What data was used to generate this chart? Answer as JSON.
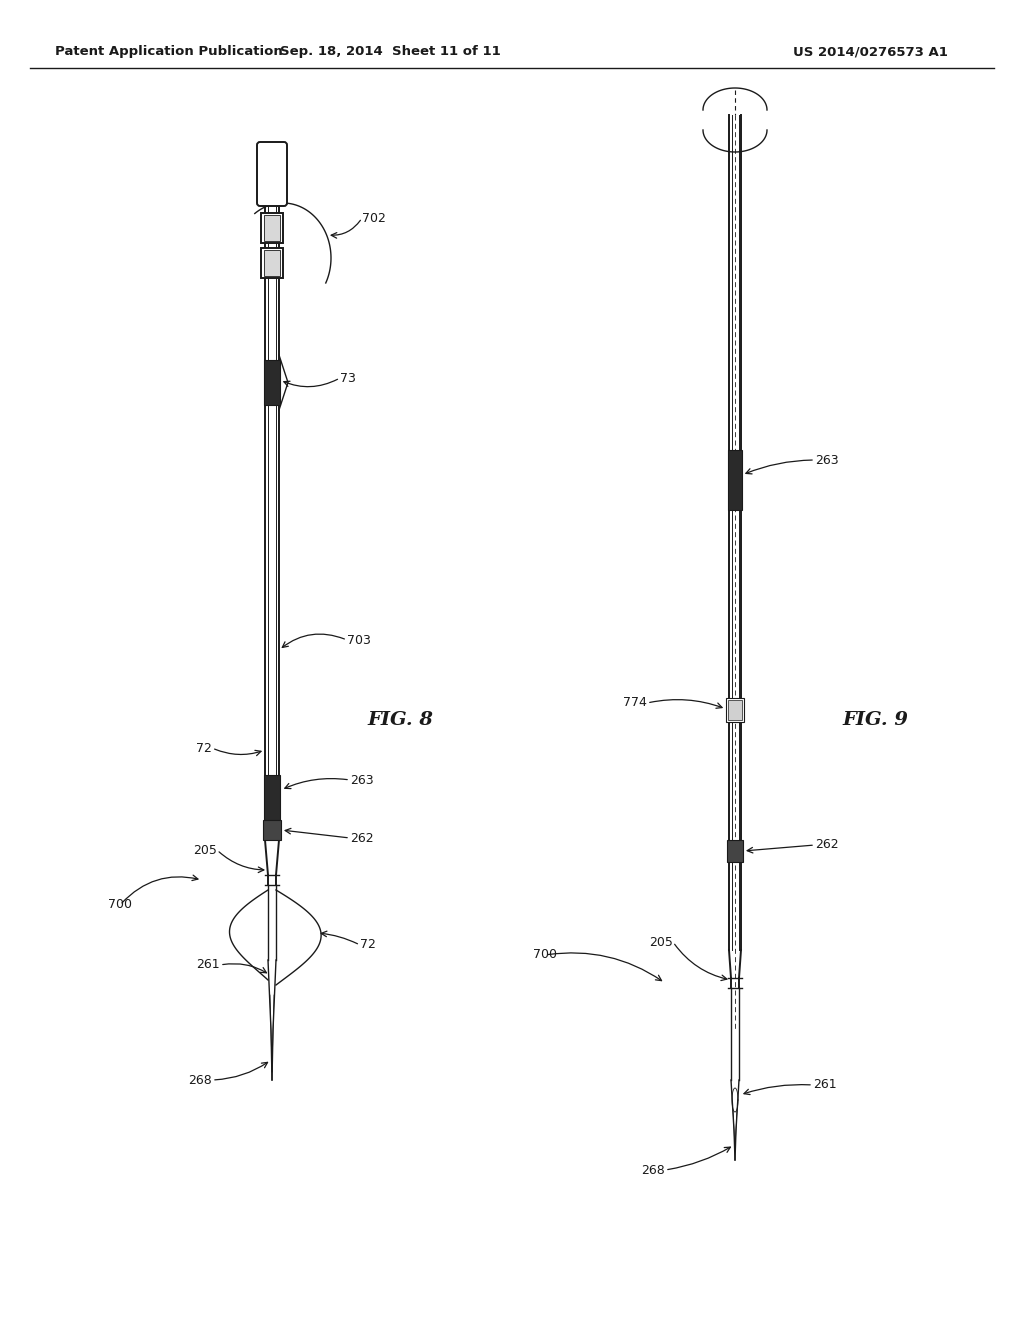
{
  "header_left": "Patent Application Publication",
  "header_mid": "Sep. 18, 2014  Sheet 11 of 11",
  "header_right": "US 2014/0276573 A1",
  "fig8_label": "FIG. 8",
  "fig9_label": "FIG. 9",
  "bg": "#ffffff",
  "lc": "#1a1a1a",
  "dark": "#2d2d2d"
}
